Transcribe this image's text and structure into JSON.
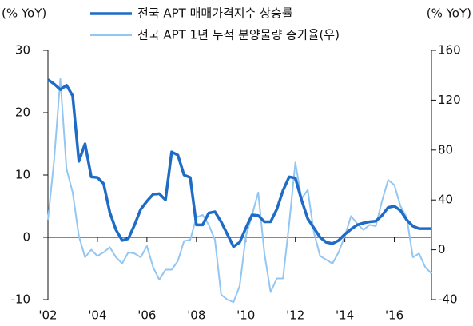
{
  "chart_data": {
    "type": "line",
    "y_label": "(% YoY)",
    "y2_label": "(% YoY)",
    "x": [
      2002,
      2002.25,
      2002.5,
      2002.75,
      2003,
      2003.25,
      2003.5,
      2003.75,
      2004,
      2004.25,
      2004.5,
      2004.75,
      2005,
      2005.25,
      2005.5,
      2005.75,
      2006,
      2006.25,
      2006.5,
      2006.75,
      2007,
      2007.25,
      2007.5,
      2007.75,
      2008,
      2008.25,
      2008.5,
      2008.75,
      2009,
      2009.25,
      2009.5,
      2009.75,
      2010,
      2010.25,
      2010.5,
      2010.75,
      2011,
      2011.25,
      2011.5,
      2011.75,
      2012,
      2012.25,
      2012.5,
      2012.75,
      2013,
      2013.25,
      2013.5,
      2013.75,
      2014,
      2014.25,
      2014.5,
      2014.75,
      2015,
      2015.25,
      2015.5,
      2015.75,
      2016,
      2016.25,
      2016.5,
      2016.75,
      2017,
      2017.25,
      2017.5
    ],
    "series": [
      {
        "name": "전국 APT 매매가격지수 상승률",
        "color": "#1f6cc6",
        "axis": "y",
        "values": [
          25.3,
          24.6,
          23.7,
          24.4,
          22.7,
          12.2,
          15.0,
          9.7,
          9.6,
          8.6,
          4.0,
          1.2,
          -0.5,
          -0.2,
          2.0,
          4.5,
          5.8,
          6.9,
          7.0,
          6.0,
          13.7,
          13.2,
          10.0,
          9.6,
          2.0,
          2.0,
          3.9,
          4.1,
          2.5,
          0.5,
          -1.5,
          -0.8,
          1.5,
          3.6,
          3.5,
          2.5,
          2.5,
          4.5,
          7.5,
          9.7,
          9.5,
          6.0,
          3.0,
          1.5,
          0.0,
          -0.8,
          -1.0,
          -0.5,
          0.5,
          1.3,
          2.0,
          2.3,
          2.5,
          2.6,
          3.5,
          4.8,
          5.0,
          4.3,
          2.8,
          1.8,
          1.4,
          1.4,
          1.4
        ]
      },
      {
        "name": "전국 APT 1년 누적 분양물량 증가율(우)",
        "color": "#93c6f0",
        "axis": "y2",
        "values": [
          24,
          72,
          137,
          65,
          46,
          11,
          -6,
          0,
          -5,
          -2,
          2,
          -6,
          -11,
          -2,
          -3,
          -6,
          3,
          -14,
          -24,
          -16,
          -16,
          -9,
          7,
          8,
          26,
          28,
          20,
          8,
          -36,
          -40,
          -42,
          -29,
          11,
          28,
          46,
          -3,
          -34,
          -23,
          -23,
          21,
          70,
          41,
          48,
          14,
          -5,
          -8,
          -11,
          -2,
          11,
          27,
          21,
          16,
          20,
          19,
          39,
          56,
          52,
          35,
          26,
          -6,
          -3,
          -14,
          -19
        ]
      }
    ],
    "xlim": [
      2002,
      2017.5
    ],
    "xticks": [
      {
        "value": 2002,
        "label": "'02"
      },
      {
        "value": 2004,
        "label": "'04"
      },
      {
        "value": 2006,
        "label": "'06"
      },
      {
        "value": 2008,
        "label": "'08"
      },
      {
        "value": 2010,
        "label": "'10"
      },
      {
        "value": 2012,
        "label": "'12"
      },
      {
        "value": 2014,
        "label": "'14"
      },
      {
        "value": 2016,
        "label": "'16"
      }
    ],
    "ylim": [
      -10,
      30
    ],
    "yticks": [
      -10,
      0,
      10,
      20,
      30
    ],
    "y2lim": [
      -40,
      160
    ],
    "y2ticks": [
      -40,
      0,
      40,
      80,
      120,
      160
    ],
    "legend": "top",
    "grid": false
  }
}
